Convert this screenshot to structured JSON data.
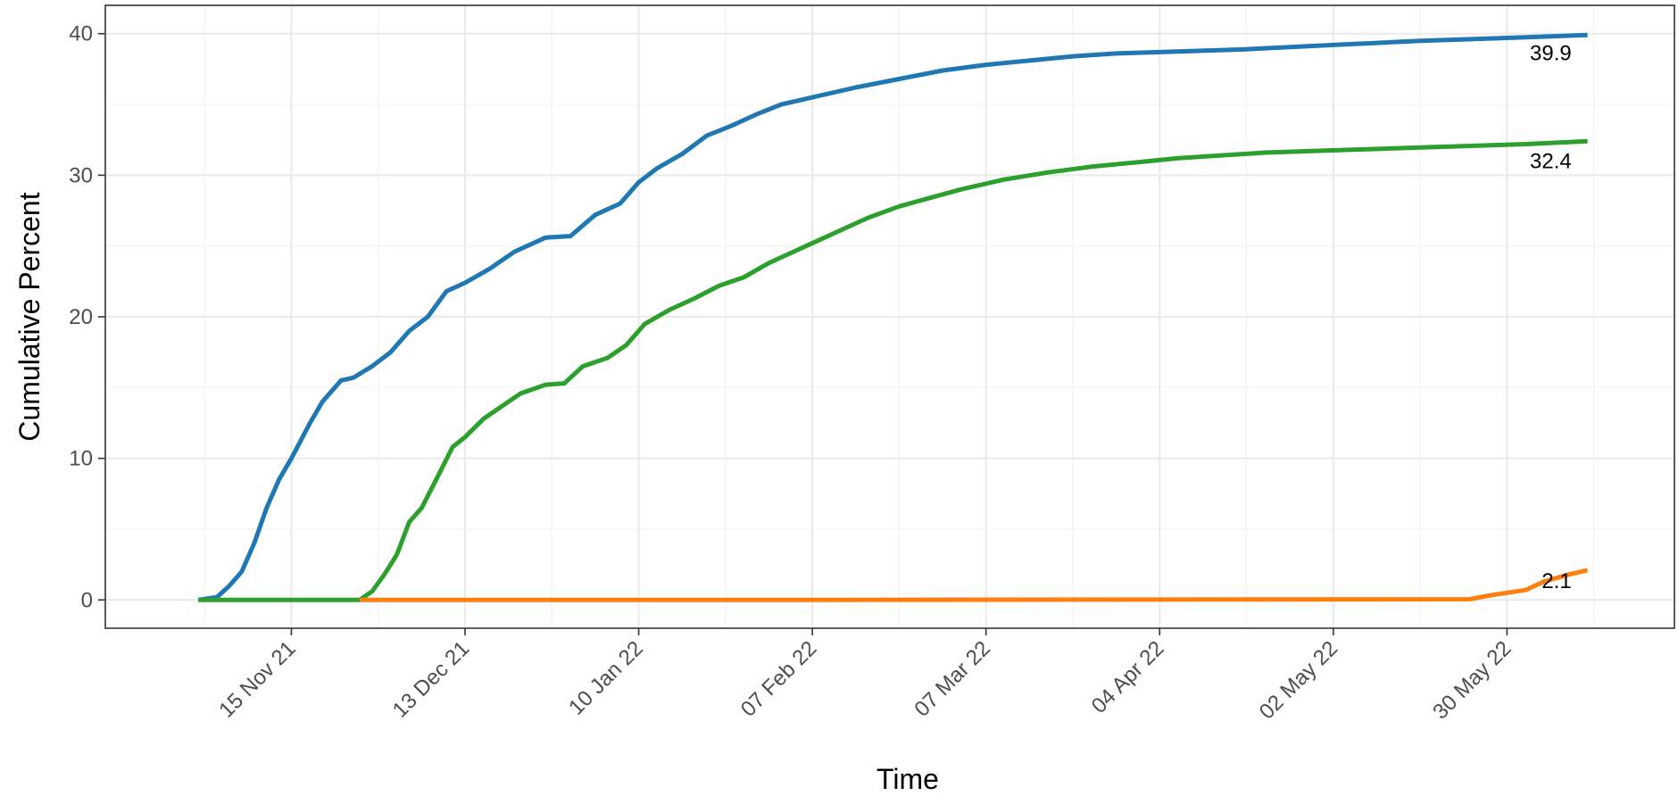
{
  "chart_data": {
    "type": "line",
    "title": "",
    "xlabel": "Time",
    "ylabel": "Cumulative Percent",
    "x_axis_type": "date",
    "xlim": [
      "2021-10-16",
      "2022-06-26"
    ],
    "ylim": [
      -2,
      42
    ],
    "y_ticks": [
      0,
      10,
      20,
      30,
      40
    ],
    "x_ticks": [
      {
        "date": "2021-11-15",
        "label": "15 Nov 21"
      },
      {
        "date": "2021-12-13",
        "label": "13 Dec 21"
      },
      {
        "date": "2022-01-10",
        "label": "10 Jan 22"
      },
      {
        "date": "2022-02-07",
        "label": "07 Feb 22"
      },
      {
        "date": "2022-03-07",
        "label": "07 Mar 22"
      },
      {
        "date": "2022-04-04",
        "label": "04 Apr 22"
      },
      {
        "date": "2022-05-02",
        "label": "02 May 22"
      },
      {
        "date": "2022-05-30",
        "label": "30 May 22"
      }
    ],
    "grid": true,
    "legend": "none",
    "series": [
      {
        "color": "#1f77b4",
        "end_label": "39.9",
        "points": [
          [
            "2021-10-31",
            0
          ],
          [
            "2021-11-03",
            0.2
          ],
          [
            "2021-11-05",
            1
          ],
          [
            "2021-11-07",
            2
          ],
          [
            "2021-11-09",
            4
          ],
          [
            "2021-11-11",
            6.5
          ],
          [
            "2021-11-13",
            8.5
          ],
          [
            "2021-11-15",
            10
          ],
          [
            "2021-11-18",
            12.5
          ],
          [
            "2021-11-20",
            14
          ],
          [
            "2021-11-23",
            15.5
          ],
          [
            "2021-11-25",
            15.7
          ],
          [
            "2021-11-28",
            16.5
          ],
          [
            "2021-12-01",
            17.5
          ],
          [
            "2021-12-04",
            19
          ],
          [
            "2021-12-07",
            20
          ],
          [
            "2021-12-10",
            21.8
          ],
          [
            "2021-12-13",
            22.4
          ],
          [
            "2021-12-17",
            23.4
          ],
          [
            "2021-12-21",
            24.6
          ],
          [
            "2021-12-26",
            25.6
          ],
          [
            "2021-12-30",
            25.7
          ],
          [
            "2022-01-03",
            27.2
          ],
          [
            "2022-01-07",
            28
          ],
          [
            "2022-01-10",
            29.5
          ],
          [
            "2022-01-13",
            30.5
          ],
          [
            "2022-01-17",
            31.5
          ],
          [
            "2022-01-21",
            32.8
          ],
          [
            "2022-01-25",
            33.5
          ],
          [
            "2022-01-29",
            34.3
          ],
          [
            "2022-02-02",
            35
          ],
          [
            "2022-02-07",
            35.5
          ],
          [
            "2022-02-14",
            36.2
          ],
          [
            "2022-02-21",
            36.8
          ],
          [
            "2022-02-28",
            37.4
          ],
          [
            "2022-03-07",
            37.8
          ],
          [
            "2022-03-14",
            38.1
          ],
          [
            "2022-03-21",
            38.4
          ],
          [
            "2022-03-28",
            38.6
          ],
          [
            "2022-04-04",
            38.7
          ],
          [
            "2022-04-18",
            38.9
          ],
          [
            "2022-05-02",
            39.2
          ],
          [
            "2022-05-16",
            39.5
          ],
          [
            "2022-05-30",
            39.7
          ],
          [
            "2022-06-12",
            39.9
          ]
        ]
      },
      {
        "color": "#2ca02c",
        "end_label": "32.4",
        "points": [
          [
            "2021-10-31",
            0
          ],
          [
            "2021-11-26",
            0
          ],
          [
            "2021-11-28",
            0.6
          ],
          [
            "2021-11-30",
            1.8
          ],
          [
            "2021-12-02",
            3.2
          ],
          [
            "2021-12-04",
            5.5
          ],
          [
            "2021-12-06",
            6.5
          ],
          [
            "2021-12-08",
            8.2
          ],
          [
            "2021-12-11",
            10.8
          ],
          [
            "2021-12-13",
            11.5
          ],
          [
            "2021-12-16",
            12.8
          ],
          [
            "2021-12-19",
            13.7
          ],
          [
            "2021-12-22",
            14.6
          ],
          [
            "2021-12-26",
            15.2
          ],
          [
            "2021-12-29",
            15.3
          ],
          [
            "2022-01-01",
            16.5
          ],
          [
            "2022-01-05",
            17.1
          ],
          [
            "2022-01-08",
            18
          ],
          [
            "2022-01-11",
            19.5
          ],
          [
            "2022-01-15",
            20.5
          ],
          [
            "2022-01-19",
            21.3
          ],
          [
            "2022-01-23",
            22.2
          ],
          [
            "2022-01-27",
            22.8
          ],
          [
            "2022-01-31",
            23.8
          ],
          [
            "2022-02-04",
            24.6
          ],
          [
            "2022-02-08",
            25.4
          ],
          [
            "2022-02-12",
            26.2
          ],
          [
            "2022-02-16",
            27
          ],
          [
            "2022-02-21",
            27.8
          ],
          [
            "2022-02-26",
            28.4
          ],
          [
            "2022-03-03",
            29
          ],
          [
            "2022-03-10",
            29.7
          ],
          [
            "2022-03-17",
            30.2
          ],
          [
            "2022-03-24",
            30.6
          ],
          [
            "2022-03-31",
            30.9
          ],
          [
            "2022-04-07",
            31.2
          ],
          [
            "2022-04-21",
            31.6
          ],
          [
            "2022-05-05",
            31.8
          ],
          [
            "2022-05-19",
            32
          ],
          [
            "2022-06-02",
            32.2
          ],
          [
            "2022-06-12",
            32.4
          ]
        ]
      },
      {
        "color": "#ff7f0e",
        "end_label": "2.1",
        "points": [
          [
            "2021-11-26",
            0
          ],
          [
            "2022-02-07",
            0
          ],
          [
            "2022-05-24",
            0.05
          ],
          [
            "2022-05-27",
            0.3
          ],
          [
            "2022-05-30",
            0.5
          ],
          [
            "2022-06-02",
            0.7
          ],
          [
            "2022-06-05",
            1.3
          ],
          [
            "2022-06-09",
            1.8
          ],
          [
            "2022-06-12",
            2.1
          ]
        ]
      }
    ]
  }
}
